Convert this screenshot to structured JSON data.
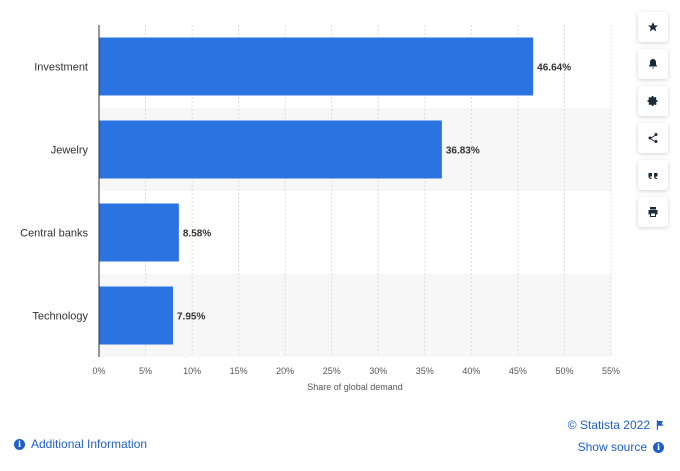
{
  "chart_data": {
    "type": "bar",
    "orientation": "horizontal",
    "categories": [
      "Investment",
      "Jewelry",
      "Central banks",
      "Technology"
    ],
    "values": [
      46.64,
      36.83,
      8.58,
      7.95
    ],
    "value_labels": [
      "46.64%",
      "36.83%",
      "8.58%",
      "7.95%"
    ],
    "xlabel": "Share of global demand",
    "ylabel": "",
    "xlim": [
      0,
      55
    ],
    "xticks": [
      0,
      5,
      10,
      15,
      20,
      25,
      30,
      35,
      40,
      45,
      50,
      55
    ],
    "xtick_labels": [
      "0%",
      "5%",
      "10%",
      "15%",
      "20%",
      "25%",
      "30%",
      "35%",
      "40%",
      "45%",
      "50%",
      "55%"
    ],
    "bar_color": "#2a73e0",
    "band_color": "#f7f7f7",
    "grid": true
  },
  "toolbar": {
    "icons": [
      "star-icon",
      "bell-icon",
      "gear-icon",
      "share-icon",
      "quote-icon",
      "print-icon"
    ]
  },
  "footer": {
    "additional_info": "Additional Information",
    "copyright": "© Statista 2022",
    "show_source": "Show source"
  },
  "colors": {
    "link": "#1e5fc9",
    "icon": "#1c2b3a"
  }
}
